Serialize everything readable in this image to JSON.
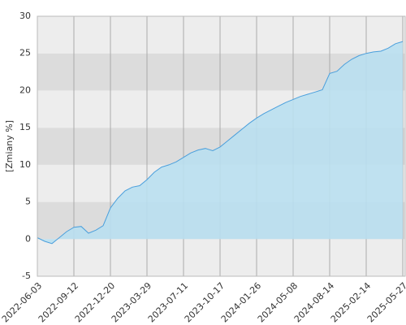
{
  "chart_data": {
    "type": "area",
    "y_label": "[Zmiany %]",
    "categories": [
      "2022-06-03",
      null,
      null,
      null,
      null,
      "2022-09-12",
      null,
      null,
      null,
      null,
      "2022-12-20",
      null,
      null,
      null,
      null,
      "2023-03-29",
      null,
      null,
      null,
      null,
      "2023-07-11",
      null,
      null,
      null,
      null,
      "2023-10-17",
      null,
      null,
      null,
      null,
      "2024-01-26",
      null,
      null,
      null,
      null,
      "2024-05-08",
      null,
      null,
      null,
      null,
      "2024-08-14",
      null,
      null,
      null,
      null,
      "2025-02-14",
      null,
      null,
      null,
      null,
      "2025-05-27"
    ],
    "values": [
      0.2,
      -0.3,
      -0.6,
      0.2,
      1.0,
      1.6,
      1.7,
      0.8,
      1.2,
      1.8,
      4.2,
      5.5,
      6.5,
      7.0,
      7.2,
      8.0,
      9.0,
      9.7,
      10.0,
      10.4,
      11.0,
      11.6,
      12.0,
      12.2,
      11.9,
      12.4,
      13.2,
      14.0,
      14.8,
      15.6,
      16.3,
      16.9,
      17.4,
      17.9,
      18.4,
      18.8,
      19.2,
      19.5,
      19.8,
      20.1,
      22.3,
      22.6,
      23.5,
      24.2,
      24.7,
      25.0,
      25.2,
      25.3,
      25.7,
      26.3,
      26.6
    ],
    "color": "#b9dff0",
    "line_color": "#4a9fdc",
    "band_colors": [
      "#ededed",
      "#dcdcdc"
    ],
    "ylim": [
      -5,
      30
    ],
    "yticks": [
      -5,
      0,
      5,
      10,
      15,
      20,
      25,
      30
    ],
    "grid": true
  }
}
